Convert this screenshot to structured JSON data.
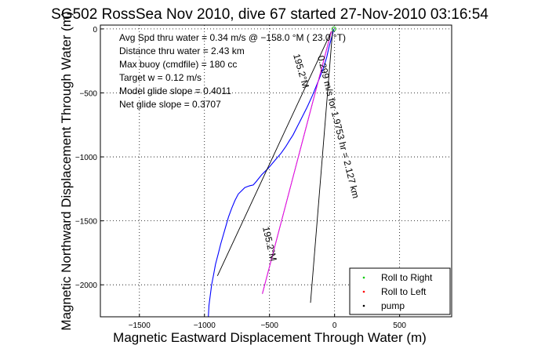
{
  "chart_data": {
    "type": "line",
    "title": "SG502 RossSea Nov 2010, dive 67 started 27-Nov-2010 03:16:54",
    "xlabel": "Magnetic Eastward Displacement Through Water (m)",
    "ylabel": "Magnetic Northward Displacement Through Water (m)",
    "xlim": [
      -1800,
      900
    ],
    "ylim": [
      -2250,
      30
    ],
    "xticks": [
      -1500,
      -1000,
      -500,
      0,
      500
    ],
    "yticks": [
      0,
      -500,
      -1000,
      -1500,
      -2000
    ],
    "xtick_labels": [
      "−1500",
      "−1000",
      "−500",
      "0",
      "500"
    ],
    "ytick_labels": [
      "0",
      "−500",
      "−1000",
      "−1500",
      "−2000"
    ],
    "grid": true,
    "legend_position": "bottom-right",
    "annotations": [
      "Avg Spd thru water =  0.34 m/s @ −158.0   °M ( 23.0 °T)",
      "Distance thru water =  2.43 km",
      "Max buoy (cmdfile) = 180 cc",
      "Target w = 0.12 m/s",
      "Model glide slope = 0.4011",
      "Net glide slope = 0.3707"
    ],
    "rotated_labels": [
      "195.2°M",
      "0.299 m/s for 1.9753 hr = 2.127 km",
      "195.2°M"
    ],
    "series": [
      {
        "name": "",
        "color": "#0000ff",
        "x": [
          -5,
          -20,
          -40,
          -60,
          -90,
          -130,
          -170,
          -210,
          -250,
          -285,
          -320,
          -345,
          -375,
          -410,
          -460,
          -510,
          -560,
          -600,
          -625,
          -650,
          -665,
          -690,
          -710,
          -740,
          -765,
          -790,
          -815,
          -835,
          -855,
          -875,
          -895,
          -915,
          -930,
          -945,
          -955,
          -965,
          -970
        ],
        "y": [
          0,
          -60,
          -130,
          -220,
          -320,
          -420,
          -520,
          -610,
          -690,
          -760,
          -830,
          -870,
          -920,
          -970,
          -1030,
          -1090,
          -1140,
          -1190,
          -1220,
          -1225,
          -1230,
          -1240,
          -1260,
          -1290,
          -1340,
          -1400,
          -1470,
          -1540,
          -1610,
          -1680,
          -1760,
          -1840,
          -1920,
          -2000,
          -2080,
          -2160,
          -2250
        ]
      },
      {
        "name": "",
        "color": "#000000",
        "x": [
          -25,
          -900
        ],
        "y": [
          -20,
          -1930
        ]
      },
      {
        "name": "",
        "color": "#000000",
        "x": [
          -25,
          -555
        ],
        "y": [
          -20,
          -2070
        ]
      },
      {
        "name": "",
        "color": "#ff00ff",
        "x": [
          -25,
          -555
        ],
        "y": [
          -20,
          -2070
        ]
      },
      {
        "name": "",
        "color": "#000000",
        "x": [
          -15,
          -185
        ],
        "y": [
          -10,
          -2140
        ]
      }
    ],
    "legend": [
      {
        "label": "Roll to Right",
        "color": "#00cc00"
      },
      {
        "label": "Roll to Left",
        "color": "#ff0000"
      },
      {
        "label": "pump",
        "color": "#000000"
      }
    ]
  }
}
